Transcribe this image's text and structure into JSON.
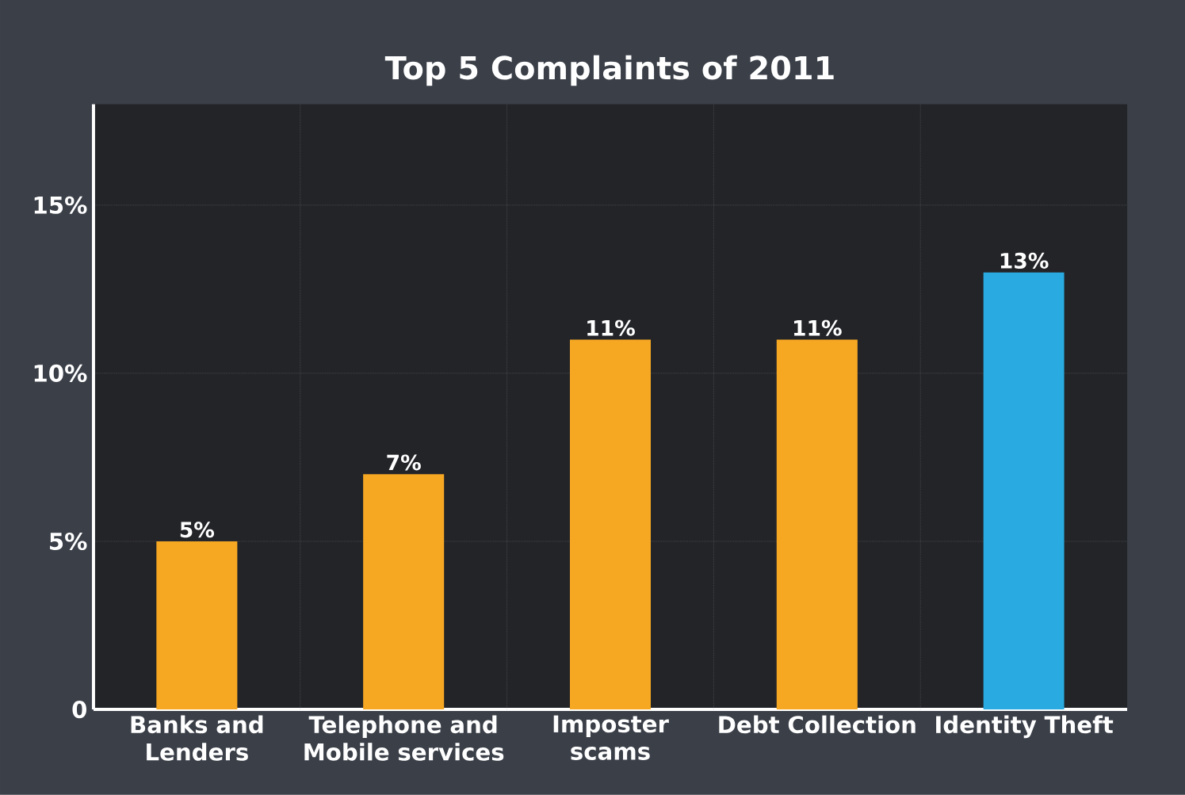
{
  "chart_data": {
    "type": "bar",
    "title": "Top 5 Complaints of 2011",
    "categories": [
      "Banks and Lenders",
      "Telephone and Mobile services",
      "Imposter scams",
      "Debt Collection",
      "Identity Theft"
    ],
    "values": [
      5,
      7,
      11,
      11,
      13
    ],
    "colors": [
      "#f7a823",
      "#f7a823",
      "#f7a823",
      "#f7a823",
      "#29abe2"
    ],
    "value_labels": [
      "5%",
      "7%",
      "11%",
      "11%",
      "13%"
    ],
    "ylim": [
      0,
      18
    ],
    "yticks": [
      {
        "value": 0,
        "label": "0"
      },
      {
        "value": 5,
        "label": "5%"
      },
      {
        "value": 10,
        "label": "10%"
      },
      {
        "value": 15,
        "label": "15%"
      }
    ],
    "grid": true
  }
}
